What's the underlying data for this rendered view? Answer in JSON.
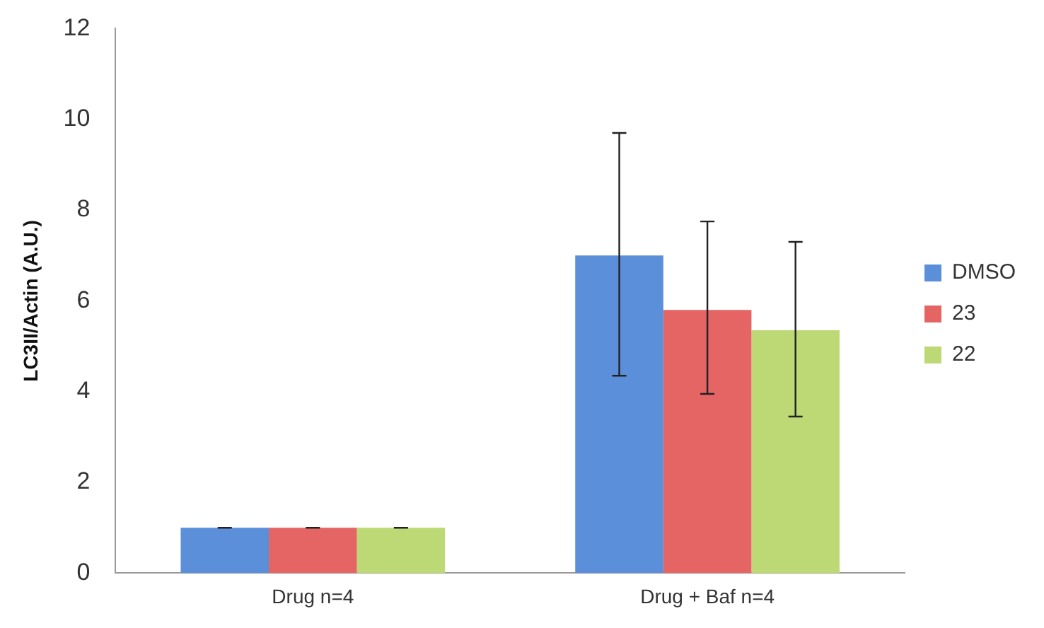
{
  "chart_data": {
    "type": "bar",
    "ylabel": "LC3II/Actin (A.U.)",
    "categories": [
      "Drug n=4",
      "Drug + Baf n=4"
    ],
    "series": [
      {
        "name": "DMSO",
        "color": "#5b8fd9",
        "values": [
          1.0,
          7.0
        ],
        "errors": [
          0,
          [
            4.35,
            9.7
          ]
        ]
      },
      {
        "name": "23",
        "color": "#e56565",
        "values": [
          1.0,
          5.8
        ],
        "errors": [
          0,
          [
            3.95,
            7.75
          ]
        ]
      },
      {
        "name": "22",
        "color": "#bcd975",
        "values": [
          1.0,
          5.35
        ],
        "errors": [
          0,
          [
            3.45,
            7.3
          ]
        ]
      }
    ],
    "ylim": [
      0,
      12
    ],
    "yticks": [
      0,
      2,
      4,
      6,
      8,
      10,
      12
    ],
    "grid": false,
    "legend": "right"
  }
}
